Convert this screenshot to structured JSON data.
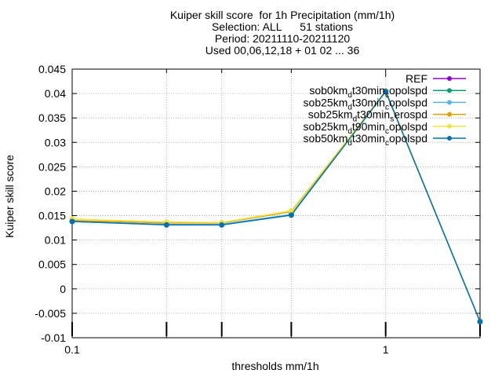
{
  "chart_data": {
    "type": "line",
    "title_lines": [
      "Kuiper skill score  for 1h Precipitation (mm/1h)",
      "Selection: ALL      51 stations",
      "Period: 20211110-20211120",
      "Used 00,06,12,18 + 01 02 ... 36"
    ],
    "xlabel": "thresholds mm/1h",
    "ylabel": "Kuiper skill score",
    "xscale": "log",
    "xlim": [
      0.1,
      2
    ],
    "ylim": [
      -0.01,
      0.045
    ],
    "xticks": [
      {
        "value": 0.1,
        "label": "0.1"
      },
      {
        "value": 1,
        "label": "1"
      }
    ],
    "xticks_minor": [
      0.2,
      0.3,
      0.5,
      2
    ],
    "yticks": [
      "0.045",
      "0.04",
      "0.035",
      "0.03",
      "0.025",
      "0.02",
      "0.015",
      "0.01",
      "0.005",
      "0",
      "-0.005",
      "-0.01"
    ],
    "grid": true,
    "legend_position": "top-right",
    "x": [
      0.1,
      0.2,
      0.3,
      0.5,
      1,
      2
    ],
    "series": [
      {
        "legend": {
          "base": "REF",
          "sub": []
        },
        "color": "#9400d3",
        "values": [
          null,
          null,
          null,
          null,
          null,
          null
        ]
      },
      {
        "legend": {
          "base": "sob0km",
          "sub": [
            [
              "d",
              "t30min"
            ],
            [
              "c",
              "opolspd"
            ]
          ]
        },
        "color": "#009e73",
        "values": [
          0.0138,
          0.0132,
          0.0132,
          0.0152,
          0.0405,
          -0.0067
        ]
      },
      {
        "legend": {
          "base": "sob25km",
          "sub": [
            [
              "d",
              "t30min"
            ],
            [
              "c",
              "opolspd"
            ]
          ]
        },
        "color": "#56b4e9",
        "values": [
          0.0138,
          0.0132,
          0.0132,
          0.0152,
          0.0405,
          -0.0067
        ]
      },
      {
        "legend": {
          "base": "sob25km",
          "sub": [
            [
              "d",
              "t30min"
            ],
            [
              "s",
              "erospd"
            ]
          ]
        },
        "color": "#e69f00",
        "values": [
          0.014,
          0.0135,
          0.0135,
          0.0158,
          0.0405,
          -0.0067
        ]
      },
      {
        "legend": {
          "base": "sob25km",
          "sub": [
            [
              "d",
              "t90min"
            ],
            [
              "c",
              "opolspd"
            ]
          ]
        },
        "color": "#f0e442",
        "values": [
          0.0143,
          0.0137,
          0.0136,
          0.016,
          0.0404,
          -0.0067
        ]
      },
      {
        "legend": {
          "base": "sob50km",
          "sub": [
            [
              "d",
              "t30min"
            ],
            [
              "c",
              "opolspd"
            ]
          ]
        },
        "color": "#0072b2",
        "values": [
          0.0138,
          0.0131,
          0.0131,
          0.0151,
          0.0404,
          -0.0067
        ]
      }
    ]
  }
}
